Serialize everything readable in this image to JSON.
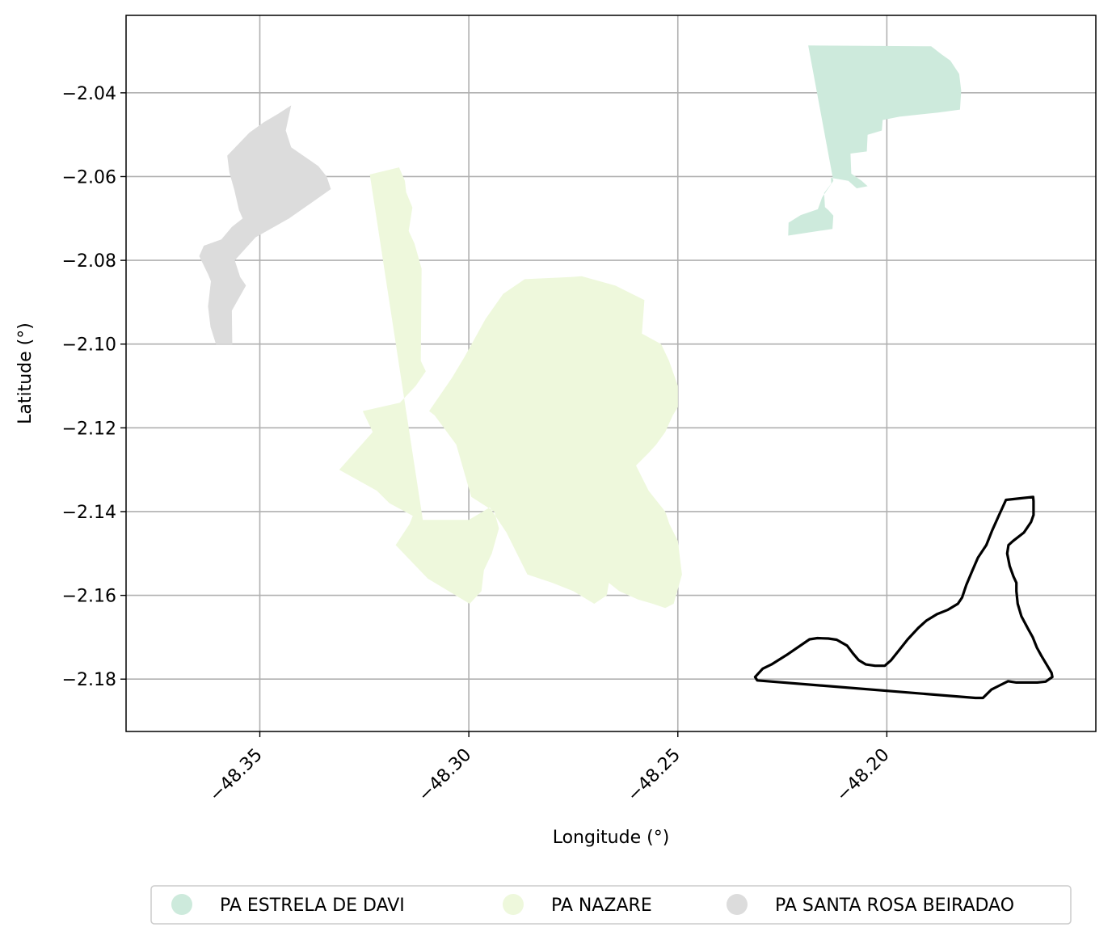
{
  "chart_data": {
    "type": "map",
    "xlabel": "Longitude (°)",
    "ylabel": "Latitude (°)",
    "xlim": [
      -48.382,
      -48.15
    ],
    "ylim": [
      -2.1925,
      -2.0215
    ],
    "grid": true,
    "legend_placement": "bottom-center",
    "x_ticks": [
      {
        "value": -48.35,
        "label": "−48.35"
      },
      {
        "value": -48.3,
        "label": "−48.30"
      },
      {
        "value": -48.25,
        "label": "−48.25"
      },
      {
        "value": -48.2,
        "label": "−48.20"
      }
    ],
    "y_ticks": [
      {
        "value": -2.04,
        "label": "−2.04"
      },
      {
        "value": -2.06,
        "label": "−2.06"
      },
      {
        "value": -2.08,
        "label": "−2.08"
      },
      {
        "value": -2.1,
        "label": "−2.10"
      },
      {
        "value": -2.12,
        "label": "−2.12"
      },
      {
        "value": -2.14,
        "label": "−2.14"
      },
      {
        "value": -2.16,
        "label": "−2.16"
      },
      {
        "value": -2.18,
        "label": "−2.18"
      }
    ],
    "series": [
      {
        "name": "PA ESTRELA DE DAVI",
        "color": "#cdeadc",
        "polygons": [
          [
            [
              -48.2188,
              -2.0287
            ],
            [
              -48.1894,
              -2.0289
            ],
            [
              -48.1869,
              -2.0308
            ],
            [
              -48.1848,
              -2.0323
            ],
            [
              -48.1827,
              -2.0355
            ],
            [
              -48.1822,
              -2.0395
            ],
            [
              -48.1825,
              -2.044
            ],
            [
              -48.1877,
              -2.0447
            ],
            [
              -48.197,
              -2.0457
            ],
            [
              -48.201,
              -2.0465
            ],
            [
              -48.2012,
              -2.049
            ],
            [
              -48.2046,
              -2.05
            ],
            [
              -48.2048,
              -2.054
            ],
            [
              -48.2087,
              -2.0545
            ],
            [
              -48.2085,
              -2.0593
            ],
            [
              -48.206,
              -2.061
            ],
            [
              -48.2046,
              -2.0623
            ],
            [
              -48.2072,
              -2.0628
            ],
            [
              -48.2092,
              -2.061
            ],
            [
              -48.2134,
              -2.0603
            ],
            [
              -48.2133,
              -2.0617
            ],
            [
              -48.215,
              -2.0639
            ],
            [
              -48.2148,
              -2.0673
            ],
            [
              -48.214,
              -2.068
            ],
            [
              -48.2128,
              -2.0693
            ],
            [
              -48.213,
              -2.0725
            ],
            [
              -48.2236,
              -2.0741
            ],
            [
              -48.2235,
              -2.071
            ],
            [
              -48.2206,
              -2.0692
            ],
            [
              -48.2165,
              -2.0678
            ],
            [
              -48.2155,
              -2.065
            ],
            [
              -48.2128,
              -2.061
            ],
            [
              -48.2188,
              -2.0287
            ]
          ]
        ]
      },
      {
        "name": "PA NAZARE",
        "color": "#eef8dc",
        "polygons": [
          [
            [
              -48.3237,
              -2.0595
            ],
            [
              -48.3167,
              -2.0578
            ],
            [
              -48.3153,
              -2.061
            ],
            [
              -48.315,
              -2.0637
            ],
            [
              -48.3135,
              -2.0674
            ],
            [
              -48.3144,
              -2.073
            ],
            [
              -48.313,
              -2.076
            ],
            [
              -48.3113,
              -2.082
            ],
            [
              -48.3115,
              -2.104
            ],
            [
              -48.3103,
              -2.1065
            ],
            [
              -48.3127,
              -2.11
            ],
            [
              -48.3165,
              -2.114
            ],
            [
              -48.3254,
              -2.116
            ],
            [
              -48.323,
              -2.121
            ],
            [
              -48.331,
              -2.13
            ],
            [
              -48.322,
              -2.135
            ],
            [
              -48.319,
              -2.138
            ],
            [
              -48.3134,
              -2.141
            ],
            [
              -48.3142,
              -2.143
            ],
            [
              -48.3175,
              -2.148
            ],
            [
              -48.3098,
              -2.156
            ],
            [
              -48.2998,
              -2.162
            ],
            [
              -48.297,
              -2.159
            ],
            [
              -48.2964,
              -2.154
            ],
            [
              -48.2945,
              -2.15
            ],
            [
              -48.2928,
              -2.144
            ],
            [
              -48.2939,
              -2.14
            ],
            [
              -48.2994,
              -2.1365
            ],
            [
              -48.303,
              -2.124
            ],
            [
              -48.307,
              -2.1186
            ],
            [
              -48.3082,
              -2.117
            ],
            [
              -48.3095,
              -2.116
            ],
            [
              -48.304,
              -2.108
            ],
            [
              -48.301,
              -2.103
            ],
            [
              -48.296,
              -2.094
            ],
            [
              -48.2918,
              -2.088
            ],
            [
              -48.2866,
              -2.0845
            ],
            [
              -48.2756,
              -2.084
            ],
            [
              -48.273,
              -2.0838
            ],
            [
              -48.265,
              -2.086
            ],
            [
              -48.258,
              -2.0895
            ],
            [
              -48.2586,
              -2.0975
            ],
            [
              -48.254,
              -2.1
            ],
            [
              -48.2521,
              -2.104
            ],
            [
              -48.25,
              -2.11
            ],
            [
              -48.25,
              -2.115
            ],
            [
              -48.2512,
              -2.117
            ],
            [
              -48.253,
              -2.121
            ],
            [
              -48.2552,
              -2.124
            ],
            [
              -48.257,
              -2.126
            ],
            [
              -48.26,
              -2.129
            ],
            [
              -48.257,
              -2.135
            ],
            [
              -48.253,
              -2.14
            ],
            [
              -48.252,
              -2.143
            ],
            [
              -48.25,
              -2.147
            ],
            [
              -48.2495,
              -2.151
            ],
            [
              -48.249,
              -2.155
            ],
            [
              -48.251,
              -2.162
            ],
            [
              -48.253,
              -2.163
            ],
            [
              -48.256,
              -2.162
            ],
            [
              -48.2595,
              -2.161
            ],
            [
              -48.264,
              -2.159
            ],
            [
              -48.2665,
              -2.157
            ],
            [
              -48.267,
              -2.16
            ],
            [
              -48.27,
              -2.162
            ],
            [
              -48.275,
              -2.159
            ],
            [
              -48.28,
              -2.157
            ],
            [
              -48.286,
              -2.155
            ],
            [
              -48.291,
              -2.145
            ],
            [
              -48.295,
              -2.139
            ],
            [
              -48.3,
              -2.142
            ],
            [
              -48.311,
              -2.142
            ],
            [
              -48.3237,
              -2.0595
            ]
          ]
        ]
      },
      {
        "name": "PA SANTA ROSA BEIRADAO",
        "color": "#dcdcdc",
        "polygons": [
          [
            [
              -48.3425,
              -2.043
            ],
            [
              -48.3456,
              -2.045
            ],
            [
              -48.349,
              -2.047
            ],
            [
              -48.3525,
              -2.0495
            ],
            [
              -48.3578,
              -2.055
            ],
            [
              -48.3573,
              -2.059
            ],
            [
              -48.3561,
              -2.0632
            ],
            [
              -48.3555,
              -2.0658
            ],
            [
              -48.355,
              -2.068
            ],
            [
              -48.3541,
              -2.07
            ],
            [
              -48.3567,
              -2.072
            ],
            [
              -48.3592,
              -2.075
            ],
            [
              -48.3634,
              -2.0765
            ],
            [
              -48.3645,
              -2.079
            ],
            [
              -48.3624,
              -2.0833
            ],
            [
              -48.3617,
              -2.085
            ],
            [
              -48.3624,
              -2.091
            ],
            [
              -48.3618,
              -2.0959
            ],
            [
              -48.3605,
              -2.1
            ],
            [
              -48.3566,
              -2.1
            ],
            [
              -48.3567,
              -2.092
            ],
            [
              -48.3533,
              -2.086
            ],
            [
              -48.3547,
              -2.084
            ],
            [
              -48.356,
              -2.08
            ],
            [
              -48.351,
              -2.0745
            ],
            [
              -48.343,
              -2.07
            ],
            [
              -48.333,
              -2.063
            ],
            [
              -48.334,
              -2.06
            ],
            [
              -48.336,
              -2.0575
            ],
            [
              -48.3425,
              -2.053
            ],
            [
              -48.3438,
              -2.049
            ],
            [
              -48.3425,
              -2.043
            ]
          ]
        ]
      }
    ],
    "outline": {
      "color": "#000000",
      "points": [
        [
          -48.2315,
          -2.1795
        ],
        [
          -48.2297,
          -2.1775
        ],
        [
          -48.2276,
          -2.1765
        ],
        [
          -48.2236,
          -2.174
        ],
        [
          -48.2185,
          -2.1705
        ],
        [
          -48.2166,
          -2.1702
        ],
        [
          -48.214,
          -2.1703
        ],
        [
          -48.212,
          -2.1706
        ],
        [
          -48.2095,
          -2.172
        ],
        [
          -48.208,
          -2.174
        ],
        [
          -48.2067,
          -2.1755
        ],
        [
          -48.205,
          -2.1765
        ],
        [
          -48.2028,
          -2.1768
        ],
        [
          -48.2005,
          -2.1768
        ],
        [
          -48.199,
          -2.1755
        ],
        [
          -48.197,
          -2.173
        ],
        [
          -48.195,
          -2.1705
        ],
        [
          -48.1925,
          -2.1678
        ],
        [
          -48.1905,
          -2.166
        ],
        [
          -48.188,
          -2.1645
        ],
        [
          -48.1855,
          -2.1635
        ],
        [
          -48.183,
          -2.162
        ],
        [
          -48.182,
          -2.1605
        ],
        [
          -48.181,
          -2.1575
        ],
        [
          -48.1795,
          -2.154
        ],
        [
          -48.1782,
          -2.151
        ],
        [
          -48.1762,
          -2.148
        ],
        [
          -48.1748,
          -2.1445
        ],
        [
          -48.173,
          -2.1405
        ],
        [
          -48.1715,
          -2.1372
        ],
        [
          -48.165,
          -2.1365
        ],
        [
          -48.1649,
          -2.1375
        ],
        [
          -48.1649,
          -2.1408
        ],
        [
          -48.1655,
          -2.1425
        ],
        [
          -48.1672,
          -2.145
        ],
        [
          -48.1698,
          -2.147
        ],
        [
          -48.1709,
          -2.148
        ],
        [
          -48.1712,
          -2.15
        ],
        [
          -48.1706,
          -2.153
        ],
        [
          -48.1697,
          -2.1555
        ],
        [
          -48.169,
          -2.157
        ],
        [
          -48.169,
          -2.159
        ],
        [
          -48.1687,
          -2.162
        ],
        [
          -48.1678,
          -2.165
        ],
        [
          -48.1662,
          -2.168
        ],
        [
          -48.1651,
          -2.17
        ],
        [
          -48.1641,
          -2.1725
        ],
        [
          -48.163,
          -2.1745
        ],
        [
          -48.1618,
          -2.1765
        ],
        [
          -48.1606,
          -2.1785
        ],
        [
          -48.1604,
          -2.1795
        ],
        [
          -48.162,
          -2.1806
        ],
        [
          -48.164,
          -2.1808
        ],
        [
          -48.1662,
          -2.1808
        ],
        [
          -48.169,
          -2.1808
        ],
        [
          -48.171,
          -2.1805
        ],
        [
          -48.173,
          -2.1815
        ],
        [
          -48.175,
          -2.1825
        ],
        [
          -48.177,
          -2.1845
        ],
        [
          -48.1788,
          -2.1845
        ],
        [
          -48.231,
          -2.1803
        ],
        [
          -48.2315,
          -2.1795
        ]
      ]
    }
  },
  "legend": {
    "items": [
      {
        "label": "PA ESTRELA DE DAVI",
        "color": "#cdeadc"
      },
      {
        "label": "PA NAZARE",
        "color": "#eef8dc"
      },
      {
        "label": "PA SANTA ROSA BEIRADAO",
        "color": "#dcdcdc"
      }
    ]
  }
}
